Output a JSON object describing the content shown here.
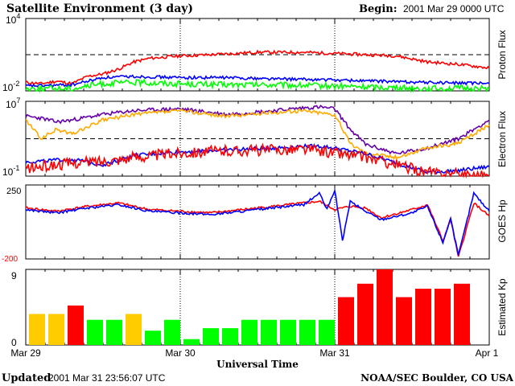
{
  "title": "Satellite Environment (3 day)",
  "begin_label": "Begin:",
  "begin_value": "2001 Mar 29 0000 UTC",
  "updated_label": "Updated",
  "updated_value": "2001 Mar 31 23:56:07 UTC",
  "credit": "NOAA/SEC Boulder, CO USA",
  "colors": {
    "red": "#ff0000",
    "blue": "#0000ff",
    "green": "#00ff00",
    "purple": "#6600aa",
    "orange": "#ffaa00",
    "yellow": "#ffcc00",
    "kp_green": "#00ff00",
    "kp_yellow": "#ffcc00",
    "kp_red": "#ff0000"
  },
  "chart_data": [
    {
      "type": "line",
      "panel": "proton",
      "ylabel": "Proton Flux",
      "ylim_exp": [
        -2,
        4
      ],
      "y_tick_labels": [
        {
          "base": "10",
          "exp": "4"
        },
        {
          "base": "10",
          "exp": "-2"
        }
      ],
      "threshold_exp": 1,
      "log_scale": true,
      "series": [
        {
          "color": "red",
          "x": [
            0,
            0.1,
            0.2,
            0.3,
            0.4,
            0.5,
            0.6,
            0.7,
            0.8,
            1.0,
            1.2,
            1.5,
            1.8,
            2.0,
            2.2,
            2.4,
            2.6,
            2.8,
            3.0
          ],
          "y": [
            -1.3,
            -1.4,
            -1.2,
            -1.4,
            -0.8,
            -0.6,
            -0.2,
            0.4,
            0.7,
            0.9,
            1.0,
            1.2,
            1.2,
            1.1,
            1.0,
            0.9,
            0.4,
            0.2,
            -0.1
          ]
        },
        {
          "color": "blue",
          "x": [
            0,
            0.3,
            0.5,
            0.7,
            1.0,
            1.3,
            1.6,
            2.0,
            2.3,
            2.6,
            3.0
          ],
          "y": [
            -1.6,
            -1.5,
            -0.9,
            -0.8,
            -0.9,
            -0.9,
            -1.0,
            -1.1,
            -1.2,
            -1.3,
            -1.4
          ]
        },
        {
          "color": "green",
          "x": [
            0,
            0.3,
            0.5,
            0.7,
            1.0,
            1.3,
            1.6,
            2.0,
            2.3,
            2.6,
            3.0
          ],
          "y": [
            -1.8,
            -1.8,
            -1.4,
            -1.3,
            -1.4,
            -1.5,
            -1.5,
            -1.6,
            -1.7,
            -1.8,
            -1.8
          ]
        }
      ]
    },
    {
      "type": "line",
      "panel": "electron",
      "ylabel": "Electron Flux",
      "ylim_exp": [
        -1,
        7
      ],
      "y_tick_labels": [
        {
          "base": "10",
          "exp": "7"
        },
        {
          "base": "10",
          "exp": "-1"
        }
      ],
      "threshold_exp": 3,
      "log_scale": true,
      "series": [
        {
          "color": "purple",
          "x": [
            0,
            0.1,
            0.2,
            0.3,
            0.5,
            0.7,
            1.0,
            1.3,
            1.6,
            1.8,
            1.9,
            2.0,
            2.1,
            2.2,
            2.4,
            2.6,
            2.8,
            3.0
          ],
          "y": [
            5.4,
            5.2,
            4.8,
            5.0,
            5.6,
            6.0,
            6.2,
            5.6,
            6.0,
            6.3,
            6.4,
            6.2,
            4.0,
            2.4,
            1.4,
            2.0,
            3.0,
            5.0
          ]
        },
        {
          "color": "orange",
          "x": [
            0,
            0.1,
            0.2,
            0.3,
            0.5,
            0.7,
            1.0,
            1.3,
            1.6,
            1.8,
            1.9,
            2.0,
            2.1,
            2.2,
            2.4,
            2.6,
            2.8,
            3.0
          ],
          "y": [
            5.0,
            3.0,
            4.0,
            3.5,
            5.0,
            5.6,
            6.0,
            5.4,
            5.8,
            6.0,
            5.8,
            5.6,
            2.5,
            1.5,
            1.0,
            2.0,
            2.5,
            4.5
          ]
        },
        {
          "color": "blue",
          "x": [
            0,
            0.3,
            0.5,
            0.7,
            1.0,
            1.3,
            1.6,
            1.8,
            1.9,
            2.0,
            2.2,
            2.4,
            2.6,
            2.8,
            3.0
          ],
          "y": [
            0.5,
            0.8,
            0.2,
            1.2,
            1.6,
            1.8,
            2.0,
            2.2,
            2.2,
            2.0,
            1.4,
            0.4,
            -0.6,
            -0.4,
            0.0
          ]
        },
        {
          "color": "red",
          "x": [
            0,
            0.3,
            0.5,
            0.7,
            1.0,
            1.3,
            1.6,
            1.8,
            2.0,
            2.2,
            2.4,
            2.6,
            2.8,
            3.0
          ],
          "y": [
            -0.2,
            0.4,
            0.6,
            1.0,
            1.5,
            1.7,
            1.8,
            1.9,
            1.5,
            1.0,
            0.2,
            -0.6,
            -0.8,
            -0.9
          ]
        }
      ]
    },
    {
      "type": "line",
      "panel": "goes_hp",
      "ylabel": "GOES Hp",
      "ylim": [
        -200,
        250
      ],
      "y_tick_labels": [
        {
          "text": "250",
          "color": "black"
        },
        {
          "text": "-200",
          "color": "red"
        }
      ],
      "series": [
        {
          "color": "red",
          "x": [
            0,
            0.2,
            0.4,
            0.6,
            0.8,
            1.0,
            1.2,
            1.4,
            1.6,
            1.8,
            1.9,
            2.0,
            2.1,
            2.2,
            2.3,
            2.5,
            2.6,
            2.7,
            2.75,
            2.8,
            2.9,
            3.0
          ],
          "y": [
            110,
            90,
            120,
            140,
            100,
            90,
            80,
            100,
            120,
            140,
            150,
            100,
            120,
            110,
            50,
            100,
            130,
            -90,
            40,
            -190,
            140,
            60
          ]
        },
        {
          "color": "blue",
          "x": [
            0,
            0.2,
            0.4,
            0.6,
            0.8,
            1.0,
            1.2,
            1.4,
            1.6,
            1.8,
            1.9,
            1.95,
            2.0,
            2.05,
            2.1,
            2.2,
            2.3,
            2.5,
            2.6,
            2.7,
            2.75,
            2.8,
            2.9,
            3.0
          ],
          "y": [
            100,
            80,
            110,
            130,
            90,
            80,
            70,
            90,
            110,
            130,
            200,
            100,
            220,
            -90,
            150,
            90,
            40,
            80,
            120,
            -100,
            50,
            -180,
            200,
            90
          ]
        }
      ]
    },
    {
      "type": "bar",
      "panel": "kp",
      "ylabel": "Estimated Kp",
      "ylim": [
        0,
        9
      ],
      "y_tick_labels": [
        "9",
        "0"
      ],
      "x_tick_labels": [
        "Mar 29",
        "Mar 30",
        "Mar 31",
        "Apr 1"
      ],
      "xlabel": "Universal Time",
      "values": [
        3.7,
        3.7,
        4.7,
        3.0,
        3.0,
        3.7,
        1.7,
        3.0,
        0.7,
        2.0,
        2.0,
        3.0,
        3.0,
        3.0,
        3.0,
        3.0,
        5.7,
        7.3,
        9.0,
        5.7,
        6.7,
        6.7,
        7.3
      ],
      "bar_colors": [
        "kp_yellow",
        "kp_yellow",
        "kp_red",
        "kp_green",
        "kp_green",
        "kp_yellow",
        "kp_green",
        "kp_green",
        "kp_green",
        "kp_green",
        "kp_green",
        "kp_green",
        "kp_green",
        "kp_green",
        "kp_green",
        "kp_green",
        "kp_red",
        "kp_red",
        "kp_red",
        "kp_red",
        "kp_red",
        "kp_red",
        "kp_red"
      ]
    }
  ]
}
